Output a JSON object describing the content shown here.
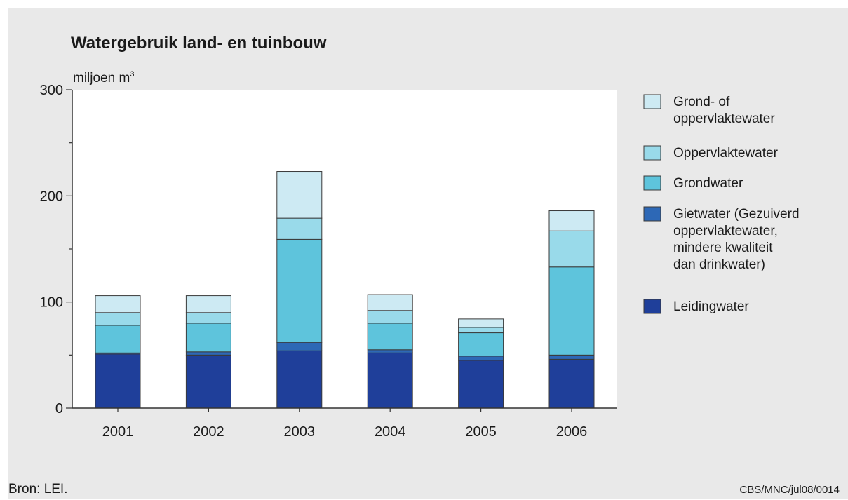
{
  "chart_data": {
    "type": "bar",
    "stacked": true,
    "title": "Watergebruik land- en tuinbouw",
    "ylabel": "miljoen m",
    "ylabel_sup": "3",
    "xlabel": "",
    "ylim": [
      0,
      300
    ],
    "yticks": [
      "0",
      "100",
      "200",
      "300"
    ],
    "categories": [
      "2001",
      "2002",
      "2003",
      "2004",
      "2005",
      "2006"
    ],
    "series": [
      {
        "name": "Leidingwater",
        "color": "#1f3f9a",
        "values": [
          51,
          50,
          54,
          52,
          45,
          46
        ]
      },
      {
        "name": "Gietwater (Gezuiverd oppervlaktewater, mindere kwaliteit dan drinkwater)",
        "color": "#2d68b6",
        "values": [
          1,
          3,
          8,
          3,
          4,
          4
        ]
      },
      {
        "name": "Grondwater",
        "color": "#5ec4dc",
        "values": [
          26,
          27,
          97,
          25,
          22,
          83
        ]
      },
      {
        "name": "Oppervlaktewater",
        "color": "#99daea",
        "values": [
          12,
          10,
          20,
          12,
          5,
          34
        ]
      },
      {
        "name": "Grond- of oppervlaktewater",
        "color": "#cdeaf3",
        "values": [
          16,
          16,
          44,
          15,
          8,
          19
        ]
      }
    ],
    "legend": {
      "position": "right",
      "entries": [
        {
          "lines": [
            "Grond- of",
            "oppervlaktewater"
          ],
          "color": "#cdeaf3"
        },
        {
          "lines": [
            "Oppervlaktewater"
          ],
          "color": "#99daea"
        },
        {
          "lines": [
            "Grondwater"
          ],
          "color": "#5ec4dc"
        },
        {
          "lines": [
            "Gietwater (Gezuiverd",
            "oppervlaktewater,",
            "mindere kwaliteit",
            "dan drinkwater)"
          ],
          "color": "#2d68b6"
        },
        {
          "lines": [
            "Leidingwater"
          ],
          "color": "#1f3f9a"
        }
      ]
    },
    "grid": false
  },
  "footer": {
    "source": "Bron: LEI.",
    "code": "CBS/MNC/jul08/0014"
  }
}
